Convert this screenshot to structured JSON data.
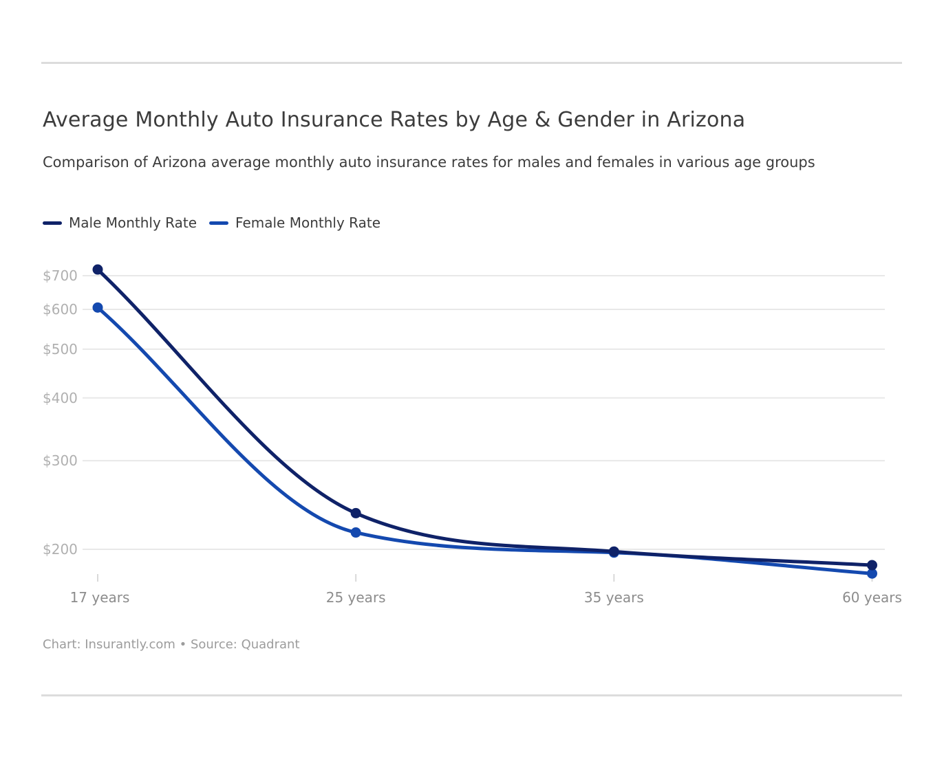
{
  "page": {
    "title": "Average Monthly Auto Insurance Rates by Age & Gender in Arizona",
    "subtitle": "Comparison of Arizona average monthly auto insurance rates for males and females in various age groups",
    "footer": "Chart: Insurantly.com • Source: Quadrant"
  },
  "colors": {
    "male": "#0f2268",
    "female": "#1449af",
    "gridline": "#e8e8e8",
    "tick": "#d9d9d9",
    "divider": "#dcdcdc",
    "text": "#3c3c3c",
    "y_label": "#b0b0b0",
    "x_label": "#8c8c8c",
    "footer": "#9c9c9c"
  },
  "legend": {
    "items": [
      {
        "label": "Male Monthly Rate",
        "color": "#0f2268"
      },
      {
        "label": "Female Monthly Rate",
        "color": "#1449af"
      }
    ]
  },
  "chart_data": {
    "type": "line",
    "title": "Average Monthly Auto Insurance Rates by Age & Gender in Arizona",
    "subtitle": "Comparison of Arizona average monthly auto insurance rates for males and females in various age groups",
    "categories": [
      "17 years",
      "25 years",
      "35 years",
      "60 years"
    ],
    "series": [
      {
        "name": "Male Monthly Rate",
        "color": "#0f2268",
        "values": [
          720,
          236,
          198,
          186
        ]
      },
      {
        "name": "Female Monthly Rate",
        "color": "#1449af",
        "values": [
          605,
          216,
          197,
          179
        ]
      }
    ],
    "y_scale": "log",
    "y_ticks": [
      {
        "value": 700,
        "label": "$700"
      },
      {
        "value": 600,
        "label": "$600"
      },
      {
        "value": 500,
        "label": "$500"
      },
      {
        "value": 400,
        "label": "$400"
      },
      {
        "value": 300,
        "label": "$300"
      },
      {
        "value": 200,
        "label": "$200"
      }
    ],
    "grid": "horizontal",
    "legend_position": "top",
    "attribution": "Chart: Insurantly.com • Source: Quadrant"
  }
}
